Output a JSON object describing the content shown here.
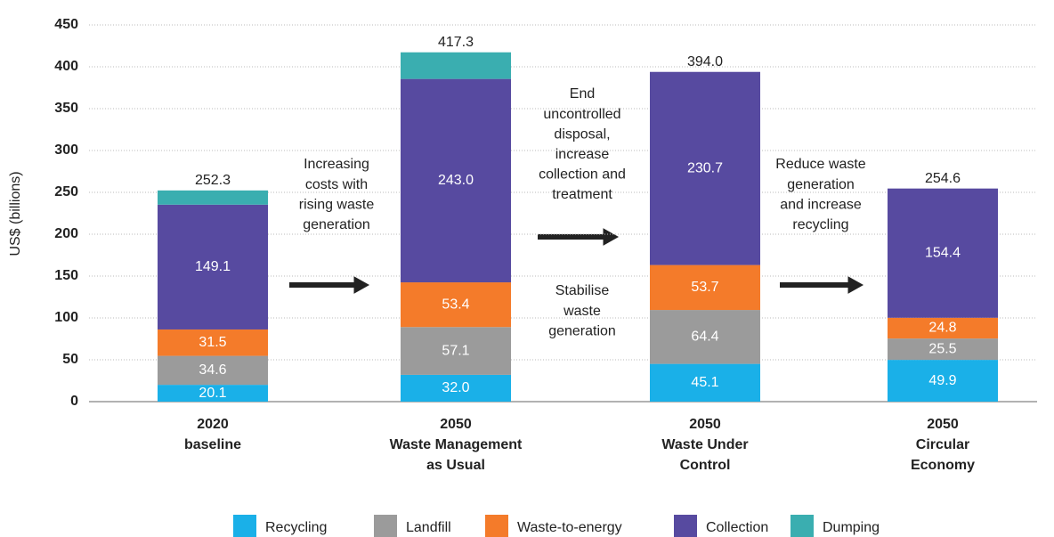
{
  "chart_data": {
    "type": "stacked_bar",
    "y_label": "US$ (billions)",
    "categories": [
      [
        "2020",
        "baseline"
      ],
      [
        "2050",
        "Waste Management",
        "as Usual"
      ],
      [
        "2050",
        "Waste Under",
        "Control"
      ],
      [
        "2050",
        "Circular",
        "Economy"
      ]
    ],
    "series": [
      {
        "name": "Recycling",
        "color": "#1ab0e8",
        "values": [
          20.1,
          32.0,
          45.1,
          49.9
        ],
        "value_labels": [
          "20.1",
          "32.0",
          "45.1",
          "49.9"
        ]
      },
      {
        "name": "Landfill",
        "color": "#9b9b9b",
        "values": [
          34.6,
          57.1,
          64.4,
          25.5
        ],
        "value_labels": [
          "34.6",
          "57.1",
          "64.4",
          "25.5"
        ]
      },
      {
        "name": "Waste-to-energy",
        "color": "#f47b2a",
        "values": [
          31.5,
          53.4,
          53.7,
          24.8
        ],
        "value_labels": [
          "31.5",
          "53.4",
          "53.7",
          "24.8"
        ]
      },
      {
        "name": "Collection",
        "color": "#574aa0",
        "values": [
          149.1,
          243.0,
          230.7,
          154.4
        ],
        "value_labels": [
          "149.1",
          "243.0",
          "230.7",
          "154.4"
        ]
      },
      {
        "name": "Dumping",
        "color": "#3aaeb0",
        "values": [
          17.0,
          31.8,
          0,
          0
        ]
      }
    ],
    "totals": [
      252.3,
      417.3,
      394.0,
      254.6
    ],
    "total_labels": [
      "252.3",
      "417.3",
      "394.0",
      "254.6"
    ],
    "annotations": [
      [
        "Increasing",
        "costs with",
        "rising waste",
        "generation"
      ],
      [
        "End",
        "uncontrolled",
        "disposal,",
        "increase",
        "collection and",
        "treatment"
      ],
      [
        "Stabilise",
        "waste",
        "generation"
      ],
      [
        "Reduce waste",
        "generation",
        "and increase",
        "recycling"
      ]
    ],
    "ylim": [
      0,
      450
    ],
    "yticks": [
      0,
      50,
      100,
      150,
      200,
      250,
      300,
      350,
      400,
      450
    ],
    "grid": true,
    "legend": "bottom"
  }
}
